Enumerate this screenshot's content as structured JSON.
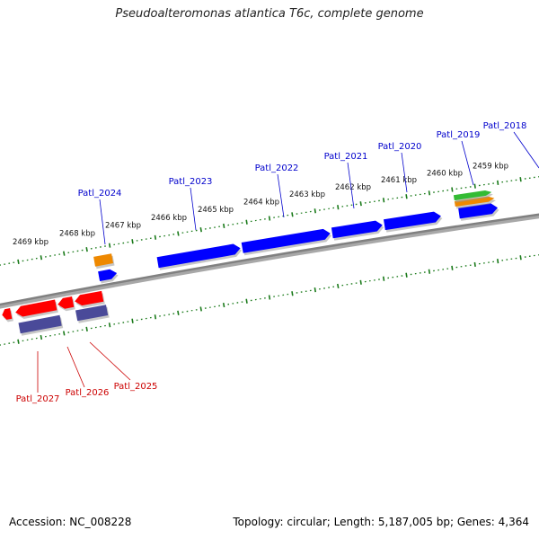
{
  "title": "Pseudoalteromonas atlantica T6c, complete genome",
  "footer": {
    "accession": "Accession: NC_008228",
    "summary": "Topology: circular; Length: 5,187,005 bp; Genes: 4,364"
  },
  "colors": {
    "backbone": "#808080",
    "ruler_dots": "#1a7a1a",
    "forward_cds": "#0000ff",
    "reverse_cds": "#ff0000",
    "forward_label": "#0000cc",
    "reverse_label": "#cc0000",
    "orange_feature": "#ee8800",
    "green_feature": "#33bb33",
    "slate_feature": "#4a4a99"
  },
  "ruler_ticks": [
    "2459 kbp",
    "2460 kbp",
    "2461 kbp",
    "2462 kbp",
    "2463 kbp",
    "2464 kbp",
    "2465 kbp",
    "2466 kbp",
    "2467 kbp",
    "2468 kbp",
    "2469 kbp"
  ],
  "forward_genes": [
    "Patl_2018",
    "Patl_2019",
    "Patl_2020",
    "Patl_2021",
    "Patl_2022",
    "Patl_2023",
    "Patl_2024"
  ],
  "reverse_genes": [
    "Patl_2025",
    "Patl_2026",
    "Patl_2027"
  ]
}
